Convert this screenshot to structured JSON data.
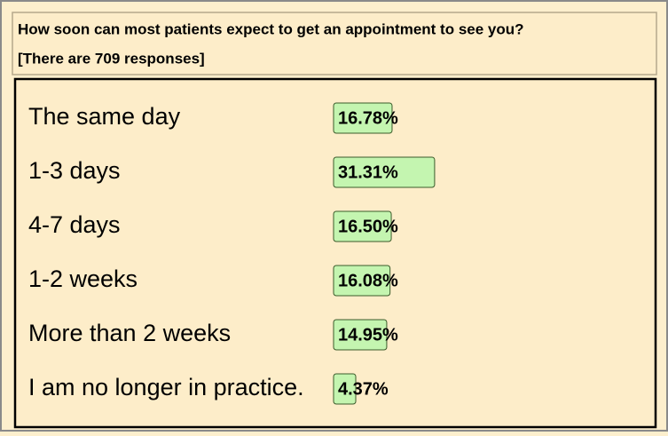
{
  "chart_data": {
    "type": "bar",
    "title": "How soon can most patients expect to get an appointment to see you?",
    "subtitle": "[There are 709 responses]",
    "categories": [
      "The same day",
      "1-3 days",
      "4-7 days",
      "1-2 weeks",
      "More than 2 weeks",
      "I am no longer in practice."
    ],
    "values": [
      16.78,
      31.31,
      16.5,
      16.08,
      14.95,
      4.37
    ],
    "value_labels": [
      "16.78%",
      "31.31%",
      "16.50%",
      "16.08%",
      "14.95%",
      "4.37%"
    ],
    "color": "#c4f5b0"
  }
}
